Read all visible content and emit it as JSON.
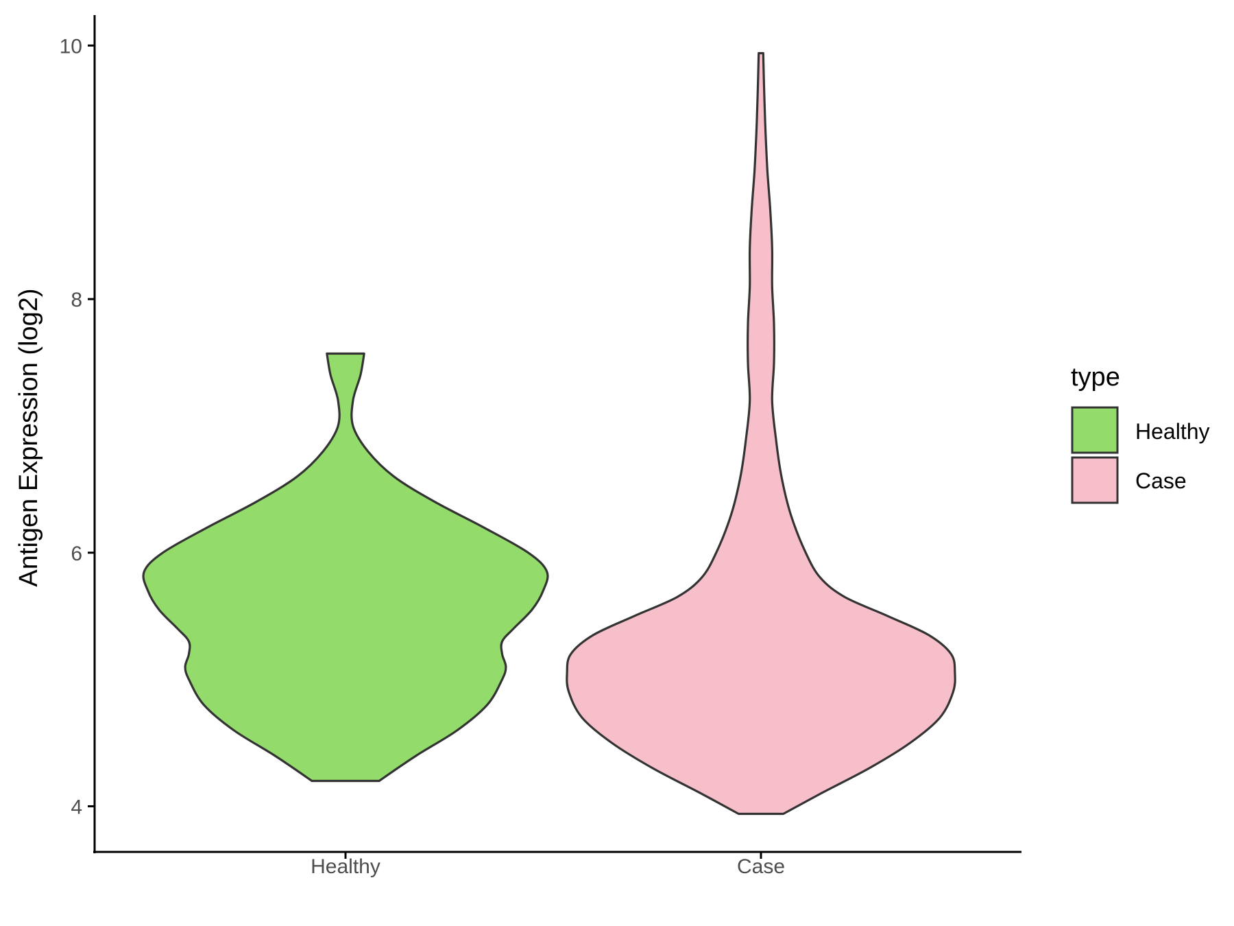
{
  "chart_data": {
    "type": "violin",
    "title": "",
    "xlabel": "",
    "ylabel": "Antigen Expression (log2)",
    "ylim": [
      3.64,
      10.24
    ],
    "yticks": [
      "4",
      "6",
      "8",
      "10"
    ],
    "grid": false,
    "legend": {
      "title": "type",
      "position": "right",
      "entries": [
        "Healthy",
        "Case"
      ]
    },
    "categories": [
      "Healthy",
      "Case"
    ],
    "series": [
      {
        "name": "Healthy",
        "color": "#93DB6A",
        "min": 4.2,
        "max": 7.57,
        "density": [
          [
            4.2,
            0.18
          ],
          [
            4.4,
            0.38
          ],
          [
            4.6,
            0.6
          ],
          [
            4.8,
            0.76
          ],
          [
            5.0,
            0.84
          ],
          [
            5.1,
            0.86
          ],
          [
            5.2,
            0.84
          ],
          [
            5.3,
            0.84
          ],
          [
            5.4,
            0.9
          ],
          [
            5.55,
            1.0
          ],
          [
            5.7,
            1.06
          ],
          [
            5.85,
            1.08
          ],
          [
            6.0,
            0.98
          ],
          [
            6.2,
            0.74
          ],
          [
            6.4,
            0.48
          ],
          [
            6.6,
            0.26
          ],
          [
            6.8,
            0.12
          ],
          [
            7.0,
            0.04
          ],
          [
            7.2,
            0.04
          ],
          [
            7.4,
            0.08
          ],
          [
            7.57,
            0.1
          ]
        ]
      },
      {
        "name": "Case",
        "color": "#F7BFCA",
        "min": 3.94,
        "max": 9.94,
        "density": [
          [
            3.94,
            0.12
          ],
          [
            4.1,
            0.32
          ],
          [
            4.3,
            0.58
          ],
          [
            4.5,
            0.8
          ],
          [
            4.7,
            0.96
          ],
          [
            4.9,
            1.03
          ],
          [
            5.05,
            1.04
          ],
          [
            5.2,
            1.02
          ],
          [
            5.35,
            0.9
          ],
          [
            5.5,
            0.68
          ],
          [
            5.65,
            0.45
          ],
          [
            5.8,
            0.32
          ],
          [
            6.0,
            0.24
          ],
          [
            6.3,
            0.16
          ],
          [
            6.6,
            0.11
          ],
          [
            6.9,
            0.08
          ],
          [
            7.2,
            0.06
          ],
          [
            7.5,
            0.07
          ],
          [
            7.8,
            0.07
          ],
          [
            8.1,
            0.06
          ],
          [
            8.4,
            0.06
          ],
          [
            8.7,
            0.05
          ],
          [
            9.0,
            0.035
          ],
          [
            9.3,
            0.025
          ],
          [
            9.6,
            0.018
          ],
          [
            9.94,
            0.012
          ]
        ]
      }
    ]
  }
}
